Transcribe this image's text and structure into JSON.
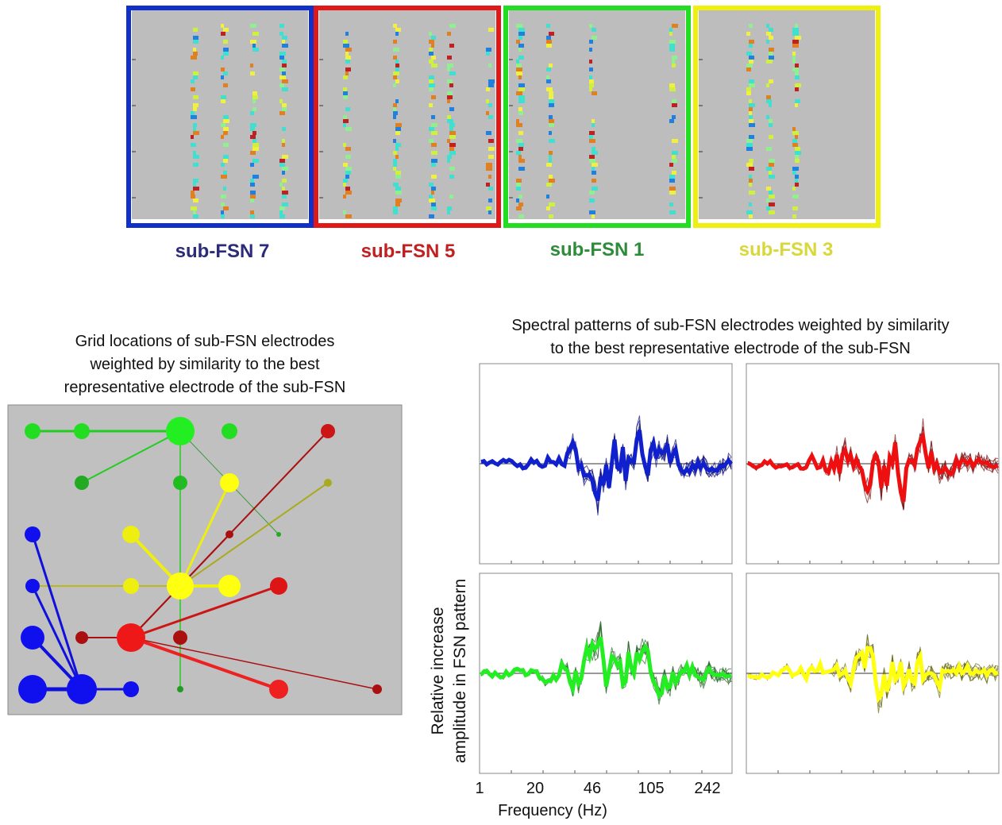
{
  "heatmaps": {
    "labels": [
      "sub-FSN 7",
      "sub-FSN 5",
      "sub-FSN 1",
      "sub-FSN 3"
    ]
  },
  "grid_panel": {
    "title_lines": [
      "Grid locations of sub-FSN electrodes",
      "weighted by similarity to the best",
      "representative electrode of the sub-FSN"
    ]
  },
  "spectra_panel": {
    "title_lines": [
      "Spectral patterns of sub-FSN electrodes weighted by similarity",
      "to the best representative electrode of the sub-FSN"
    ],
    "y_label_lines": [
      "Relative increase",
      "amplitude in FSN pattern"
    ],
    "x_ticks": [
      1,
      20,
      46,
      105,
      242
    ],
    "x_label": "Frequency (Hz)"
  }
}
